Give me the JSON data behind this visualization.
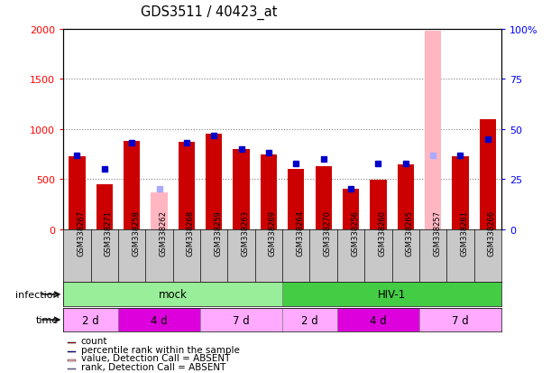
{
  "title": "GDS3511 / 40423_at",
  "samples": [
    "GSM338267",
    "GSM338271",
    "GSM338258",
    "GSM338262",
    "GSM338268",
    "GSM338259",
    "GSM338263",
    "GSM338269",
    "GSM338264",
    "GSM338270",
    "GSM338256",
    "GSM338260",
    "GSM338265",
    "GSM338257",
    "GSM338261",
    "GSM338266"
  ],
  "counts": [
    730,
    450,
    880,
    null,
    870,
    950,
    800,
    750,
    600,
    630,
    400,
    490,
    650,
    null,
    730,
    1100
  ],
  "ranks": [
    37,
    30,
    43,
    null,
    43,
    47,
    40,
    38,
    33,
    35,
    20,
    33,
    33,
    null,
    37,
    45
  ],
  "absent_counts": [
    null,
    null,
    null,
    370,
    null,
    null,
    null,
    null,
    null,
    null,
    null,
    null,
    null,
    1980,
    null,
    null
  ],
  "absent_ranks": [
    null,
    null,
    null,
    20,
    null,
    null,
    null,
    null,
    null,
    null,
    null,
    null,
    null,
    37,
    null,
    null
  ],
  "ylim_left": [
    0,
    2000
  ],
  "ylim_right": [
    0,
    100
  ],
  "bar_color_present": "#CC0000",
  "bar_color_absent": "#FFB6C1",
  "dot_color_present": "#0000CC",
  "dot_color_absent": "#AAAAFF",
  "label_bg_color": "#C8C8C8",
  "infection_groups": [
    {
      "label": "mock",
      "start": 0,
      "end": 8,
      "color": "#99EE99"
    },
    {
      "label": "HIV-1",
      "start": 8,
      "end": 16,
      "color": "#44CC44"
    }
  ],
  "time_groups": [
    {
      "label": "2 d",
      "start": 0,
      "end": 2,
      "color": "#FFAAFF"
    },
    {
      "label": "4 d",
      "start": 2,
      "end": 5,
      "color": "#DD00DD"
    },
    {
      "label": "7 d",
      "start": 5,
      "end": 8,
      "color": "#FFAAFF"
    },
    {
      "label": "2 d",
      "start": 8,
      "end": 10,
      "color": "#FFAAFF"
    },
    {
      "label": "4 d",
      "start": 10,
      "end": 13,
      "color": "#DD00DD"
    },
    {
      "label": "7 d",
      "start": 13,
      "end": 16,
      "color": "#FFAAFF"
    }
  ],
  "legend_items": [
    {
      "color": "#CC0000",
      "label": "count"
    },
    {
      "color": "#0000CC",
      "label": "percentile rank within the sample"
    },
    {
      "color": "#FFB6C1",
      "label": "value, Detection Call = ABSENT"
    },
    {
      "color": "#AAAAFF",
      "label": "rank, Detection Call = ABSENT"
    }
  ]
}
